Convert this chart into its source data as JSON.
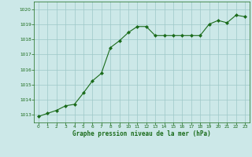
{
  "x": [
    0,
    1,
    2,
    3,
    4,
    5,
    6,
    7,
    8,
    9,
    10,
    11,
    12,
    13,
    14,
    15,
    16,
    17,
    18,
    19,
    20,
    21,
    22,
    23
  ],
  "y": [
    1012.9,
    1013.1,
    1013.3,
    1013.6,
    1013.7,
    1014.45,
    1015.25,
    1015.75,
    1017.45,
    1017.9,
    1018.45,
    1018.85,
    1018.85,
    1018.25,
    1018.25,
    1018.25,
    1018.25,
    1018.25,
    1018.25,
    1019.0,
    1019.25,
    1019.1,
    1019.6,
    1019.5
  ],
  "ylim": [
    1012.5,
    1020.5
  ],
  "xlim": [
    -0.5,
    23.5
  ],
  "yticks": [
    1013,
    1014,
    1015,
    1016,
    1017,
    1018,
    1019,
    1020
  ],
  "xticks": [
    0,
    1,
    2,
    3,
    4,
    5,
    6,
    7,
    8,
    9,
    10,
    11,
    12,
    13,
    14,
    15,
    16,
    17,
    18,
    19,
    20,
    21,
    22,
    23
  ],
  "xlabel": "Graphe pression niveau de la mer (hPa)",
  "line_color": "#1a6b1a",
  "marker_color": "#1a6b1a",
  "bg_color": "#cce8e8",
  "grid_color": "#9dc8c8",
  "xlabel_color": "#1a6b1a",
  "tick_color": "#1a6b1a"
}
